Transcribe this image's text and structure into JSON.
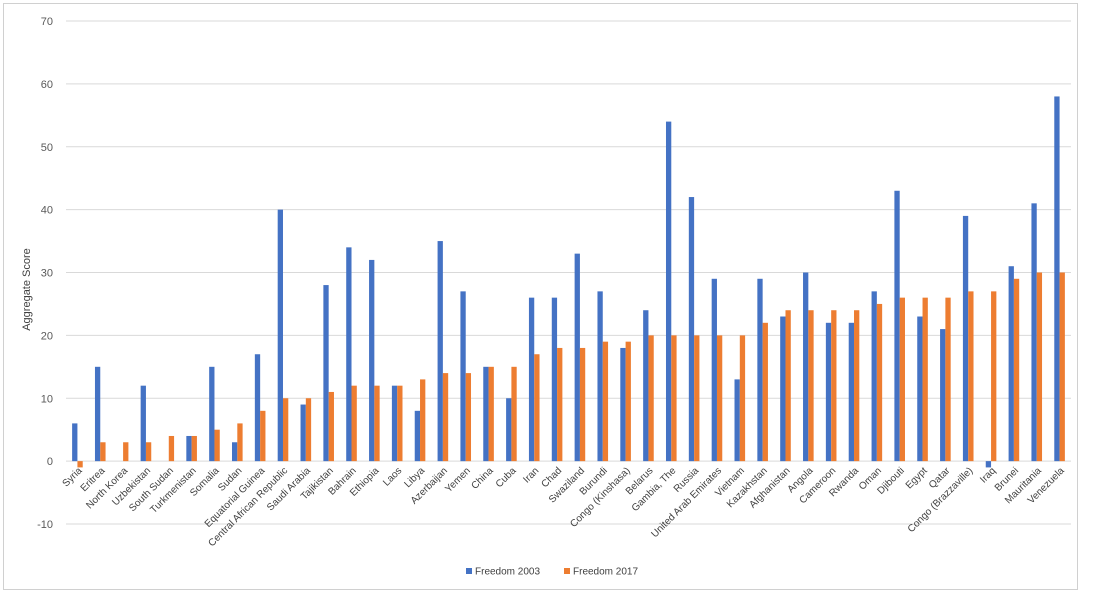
{
  "chart_data": {
    "type": "bar",
    "title": "",
    "xlabel": "",
    "ylabel": "Aggregate Score",
    "ylim": [
      -10,
      70
    ],
    "ytick_step": 10,
    "grid": true,
    "legend_position": "bottom",
    "categories": [
      "Syria",
      "Eritrea",
      "North Korea",
      "Uzbekistan",
      "South Sudan",
      "Turkmenistan",
      "Somalia",
      "Sudan",
      "Equatorial Guinea",
      "Central African Republic",
      "Saudi Arabia",
      "Tajikistan",
      "Bahrain",
      "Ethiopia",
      "Laos",
      "Libya",
      "Azerbaijan",
      "Yemen",
      "China",
      "Cuba",
      "Iran",
      "Chad",
      "Swaziland",
      "Burundi",
      "Congo (Kinshasa)",
      "Belarus",
      "Gambia, The",
      "Russia",
      "United Arab Emirates",
      "Vietnam",
      "Kazakhstan",
      "Afghanistan",
      "Angola",
      "Cameroon",
      "Rwanda",
      "Oman",
      "Djibouti",
      "Egypt",
      "Qatar",
      "Congo (Brazzaville)",
      "Iraq",
      "Brunei",
      "Mauritania",
      "Venezuela"
    ],
    "series": [
      {
        "name": "Freedom 2003",
        "color": "#4472C4",
        "values": [
          6,
          15,
          null,
          12,
          null,
          4,
          15,
          3,
          17,
          40,
          9,
          28,
          34,
          32,
          12,
          8,
          35,
          27,
          15,
          10,
          26,
          26,
          33,
          27,
          18,
          24,
          54,
          42,
          29,
          13,
          29,
          23,
          30,
          22,
          22,
          27,
          43,
          23,
          21,
          39,
          -1,
          31,
          41,
          58
        ]
      },
      {
        "name": "Freedom 2017",
        "color": "#ED7D31",
        "values": [
          -1,
          3,
          3,
          3,
          4,
          4,
          5,
          6,
          8,
          10,
          10,
          11,
          12,
          12,
          12,
          13,
          14,
          14,
          15,
          15,
          17,
          18,
          18,
          19,
          19,
          20,
          20,
          20,
          20,
          20,
          22,
          24,
          24,
          24,
          24,
          25,
          26,
          26,
          26,
          27,
          27,
          29,
          30,
          30
        ]
      }
    ]
  }
}
